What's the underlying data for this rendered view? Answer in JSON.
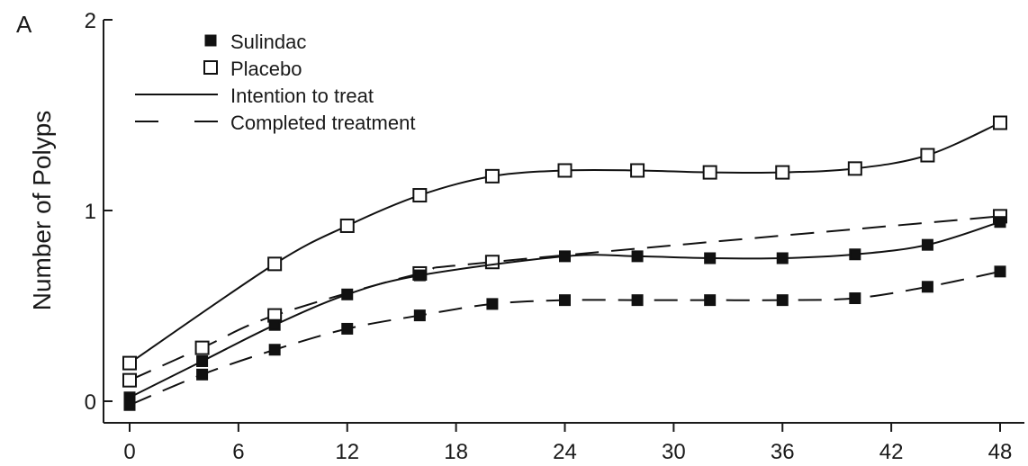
{
  "chart_data": {
    "type": "line",
    "panel_label": "A",
    "title": "",
    "xlabel": "",
    "ylabel": "Number of Polyps",
    "xlim": [
      0,
      48
    ],
    "ylim": [
      0,
      2
    ],
    "xticks": [
      0,
      6,
      12,
      18,
      24,
      30,
      36,
      42,
      48
    ],
    "yticks": [
      0,
      1,
      2
    ],
    "grid": false,
    "legend_position": "top-left",
    "legend": {
      "markers": [
        {
          "label": "Sulindac",
          "style": "filled-square"
        },
        {
          "label": "Placebo",
          "style": "open-square"
        }
      ],
      "lines": [
        {
          "label": "Intention to treat",
          "style": "solid"
        },
        {
          "label": "Completed treatment",
          "style": "dashed"
        }
      ]
    },
    "series": [
      {
        "name": "Placebo, Intention to treat",
        "marker": "open-square",
        "line": "solid",
        "x": [
          0,
          8,
          12,
          16,
          20,
          24,
          28,
          32,
          36,
          40,
          44,
          48
        ],
        "y": [
          0.2,
          0.72,
          0.92,
          1.08,
          1.18,
          1.21,
          1.21,
          1.2,
          1.2,
          1.22,
          1.29,
          1.46
        ]
      },
      {
        "name": "Placebo, Completed treatment",
        "marker": "open-square",
        "line": "dashed",
        "x": [
          0,
          4,
          8,
          16,
          20,
          48
        ],
        "y": [
          0.11,
          0.28,
          0.45,
          0.67,
          0.73,
          0.97
        ]
      },
      {
        "name": "Sulindac, Intention to treat",
        "marker": "filled-square",
        "line": "solid",
        "x": [
          0,
          4,
          8,
          12,
          16,
          24,
          28,
          32,
          36,
          40,
          44,
          48
        ],
        "y": [
          0.02,
          0.21,
          0.4,
          0.56,
          0.66,
          0.76,
          0.76,
          0.75,
          0.75,
          0.77,
          0.82,
          0.94
        ]
      },
      {
        "name": "Sulindac, Completed treatment",
        "marker": "filled-square",
        "line": "dashed",
        "x": [
          0,
          4,
          8,
          12,
          16,
          20,
          24,
          28,
          32,
          36,
          40,
          44,
          48
        ],
        "y": [
          -0.02,
          0.14,
          0.27,
          0.38,
          0.45,
          0.51,
          0.53,
          0.53,
          0.53,
          0.53,
          0.54,
          0.6,
          0.68
        ]
      }
    ]
  }
}
